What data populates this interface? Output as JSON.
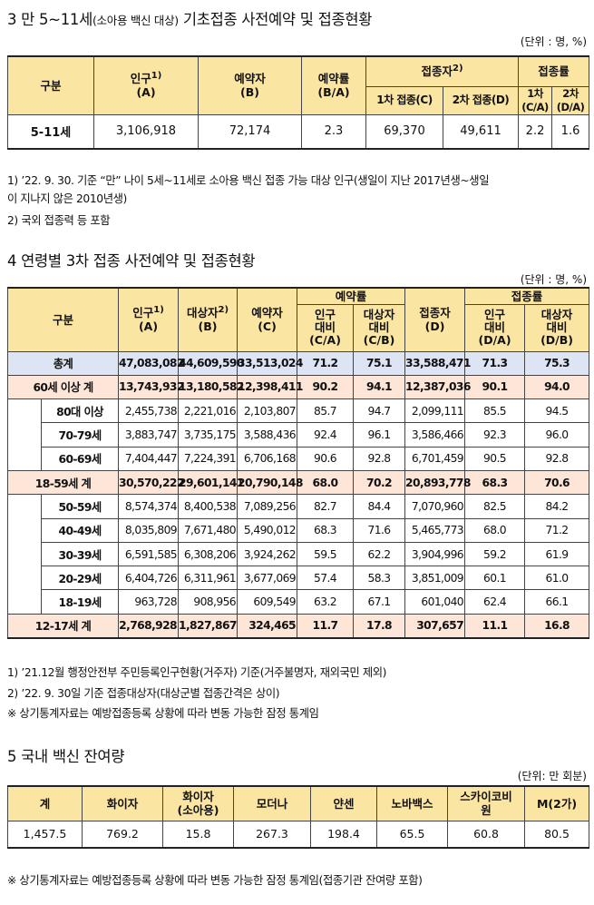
{
  "section3": {
    "title_main": "3  만 5~11세",
    "title_small": "(소아용 백신 대상)",
    "title_rest": " 기초접종 사전예약 및 접종현황",
    "unit": "(단위 : 명, %)",
    "headers": {
      "category": "구분",
      "population": "인구",
      "population_sup": "1)",
      "population_sub": "(A)",
      "reserved": "예약자",
      "reserved_sub": "(B)",
      "reserve_rate": "예약률",
      "reserve_rate_sub": "(B/A)",
      "vaccinated": "접종자",
      "vaccinated_sup": "2)",
      "dose1": "1차 접종(C)",
      "dose2": "2차 접종(D)",
      "vacc_rate": "접종률",
      "rate1": "1차",
      "rate1_sub": "(C/A)",
      "rate2": "2차",
      "rate2_sub": "(D/A)"
    },
    "row": {
      "label": "5-11세",
      "population": "3,106,918",
      "reserved": "72,174",
      "reserve_rate": "2.3",
      "dose1": "69,370",
      "dose2": "49,611",
      "rate1": "2.2",
      "rate2": "1.6"
    },
    "notes": [
      "1)  ’22. 9. 30. 기준 “만” 나이 5세~11세로 소아용 백신 접종 가능 대상 인구(생일이 지난 2017년생~생일",
      "     이 지나지 않은 2010년생)",
      "2)  국외 접종력 등 포함"
    ]
  },
  "section4": {
    "title": "4  연령별 3차 접종 사전예약 및 접종현황",
    "unit": "(단위 : 명, %)",
    "headers": {
      "category": "구분",
      "population": "인구",
      "population_sup": "1)",
      "population_sub": "(A)",
      "target": "대상자",
      "target_sup": "2)",
      "target_sub": "(B)",
      "reserved": "예약자",
      "reserved_sub": "(C)",
      "reserve_rate": "예약률",
      "pop_ratio": "인구\n대비\n(C/A)",
      "target_ratio": "대상자\n대비\n(C/B)",
      "vaccinated": "접종자",
      "vaccinated_sub": "(D)",
      "vacc_rate": "접종률",
      "vpop_ratio": "인구\n대비\n(D/A)",
      "vtarget_ratio": "대상자\n대비\n(D/B)"
    },
    "rows": [
      {
        "type": "total",
        "label": "총계",
        "vals": [
          "47,083,082",
          "44,609,590",
          "33,513,024",
          "71.2",
          "75.1",
          "33,588,471",
          "71.3",
          "75.3"
        ]
      },
      {
        "type": "group",
        "label": "60세 이상 계",
        "vals": [
          "13,743,932",
          "13,180,582",
          "12,398,411",
          "90.2",
          "94.1",
          "12,387,036",
          "90.1",
          "94.0"
        ]
      },
      {
        "type": "sub",
        "label": "80대 이상",
        "vals": [
          "2,455,738",
          "2,221,016",
          "2,103,807",
          "85.7",
          "94.7",
          "2,099,111",
          "85.5",
          "94.5"
        ]
      },
      {
        "type": "sub",
        "label": "70-79세",
        "vals": [
          "3,883,747",
          "3,735,175",
          "3,588,436",
          "92.4",
          "96.1",
          "3,586,466",
          "92.3",
          "96.0"
        ]
      },
      {
        "type": "sub",
        "label": "60-69세",
        "vals": [
          "7,404,447",
          "7,224,391",
          "6,706,168",
          "90.6",
          "92.8",
          "6,701,459",
          "90.5",
          "92.8"
        ]
      },
      {
        "type": "group",
        "label": "18-59세 계",
        "vals": [
          "30,570,222",
          "29,601,141",
          "20,790,148",
          "68.0",
          "70.2",
          "20,893,778",
          "68.3",
          "70.6"
        ]
      },
      {
        "type": "sub",
        "label": "50-59세",
        "vals": [
          "8,574,374",
          "8,400,538",
          "7,089,256",
          "82.7",
          "84.4",
          "7,070,960",
          "82.5",
          "84.2"
        ]
      },
      {
        "type": "sub",
        "label": "40-49세",
        "vals": [
          "8,035,809",
          "7,671,480",
          "5,490,012",
          "68.3",
          "71.6",
          "5,465,773",
          "68.0",
          "71.2"
        ]
      },
      {
        "type": "sub",
        "label": "30-39세",
        "vals": [
          "6,591,585",
          "6,308,206",
          "3,924,262",
          "59.5",
          "62.2",
          "3,904,996",
          "59.2",
          "61.9"
        ]
      },
      {
        "type": "sub",
        "label": "20-29세",
        "vals": [
          "6,404,726",
          "6,311,961",
          "3,677,069",
          "57.4",
          "58.3",
          "3,851,009",
          "60.1",
          "61.0"
        ]
      },
      {
        "type": "sub",
        "label": "18-19세",
        "vals": [
          "963,728",
          "908,956",
          "609,549",
          "63.2",
          "67.1",
          "601,040",
          "62.4",
          "66.1"
        ]
      },
      {
        "type": "group",
        "label": "12-17세 계",
        "vals": [
          "2,768,928",
          "1,827,867",
          "324,465",
          "11.7",
          "17.8",
          "307,657",
          "11.1",
          "16.8"
        ]
      }
    ],
    "notes": [
      "1)  ’21.12월 행정안전부 주민등록인구현황(거주자) 기준(거주불명자, 재외국민 제외)",
      "2)  ’22. 9. 30일 기준 접종대상자(대상군별 접종간격은 상이)",
      "※ 상기통계자료는 예방접종등록 상황에 따라 변동 가능한 잠정 통계임"
    ]
  },
  "section5": {
    "title": "5  국내 백신 잔여량",
    "unit": "(단위: 만 회분)",
    "headers": [
      "계",
      "화이자",
      "화이자\n(소아용)",
      "모더나",
      "얀센",
      "노바백스",
      "스카이코비\n원",
      "M(2가)"
    ],
    "values": [
      "1,457.5",
      "769.2",
      "15.8",
      "267.3",
      "198.4",
      "65.5",
      "60.8",
      "80.5"
    ],
    "note": "※ 상기통계자료는 예방접종등록 상황에 따라 변동 가능한 잠정 통계임(접종기관 잔여량 포함)"
  },
  "colors": {
    "header_bg": "#fbe5a3",
    "total_row_bg": "#dde4f4",
    "group_row_bg": "#fde6d8"
  }
}
